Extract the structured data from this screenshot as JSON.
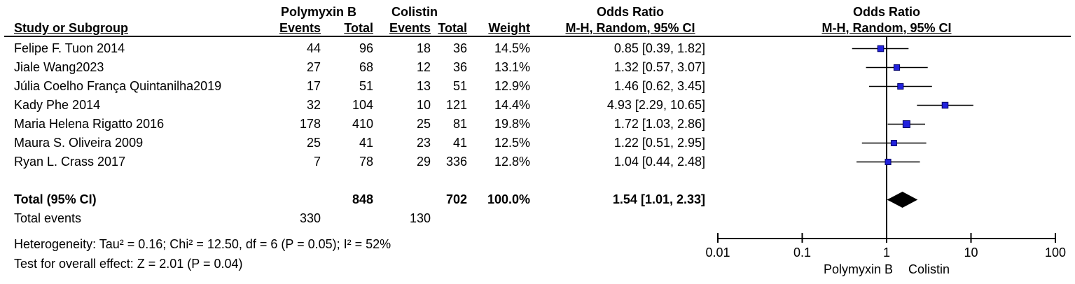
{
  "headers": {
    "group_polymyxin": "Polymyxin B",
    "group_colistin": "Colistin",
    "study": "Study or Subgroup",
    "events": "Events",
    "total": "Total",
    "weight": "Weight",
    "or_title": "Odds Ratio",
    "or_sub": "M-H, Random, 95% CI"
  },
  "table": {
    "rows": [
      {
        "study": "Felipe F. Tuon 2014",
        "pb_events": "44",
        "pb_total": "96",
        "c_events": "18",
        "c_total": "36",
        "weight": "14.5%",
        "or_ci": "0.85 [0.39, 1.82]"
      },
      {
        "study": "Jiale Wang2023",
        "pb_events": "27",
        "pb_total": "68",
        "c_events": "12",
        "c_total": "36",
        "weight": "13.1%",
        "or_ci": "1.32 [0.57, 3.07]"
      },
      {
        "study": "Júlia Coelho França Quintanilha2019",
        "pb_events": "17",
        "pb_total": "51",
        "c_events": "13",
        "c_total": "51",
        "weight": "12.9%",
        "or_ci": "1.46 [0.62, 3.45]"
      },
      {
        "study": "Kady Phe 2014",
        "pb_events": "32",
        "pb_total": "104",
        "c_events": "10",
        "c_total": "121",
        "weight": "14.4%",
        "or_ci": "4.93 [2.29, 10.65]"
      },
      {
        "study": "Maria Helena Rigatto 2016",
        "pb_events": "178",
        "pb_total": "410",
        "c_events": "25",
        "c_total": "81",
        "weight": "19.8%",
        "or_ci": "1.72 [1.03, 2.86]"
      },
      {
        "study": "Maura S. Oliveira 2009",
        "pb_events": "25",
        "pb_total": "41",
        "c_events": "23",
        "c_total": "41",
        "weight": "12.5%",
        "or_ci": "1.22 [0.51, 2.95]"
      },
      {
        "study": "Ryan L. Crass 2017",
        "pb_events": "7",
        "pb_total": "78",
        "c_events": "29",
        "c_total": "336",
        "weight": "12.8%",
        "or_ci": "1.04 [0.44, 2.48]"
      }
    ],
    "total_row": {
      "study": "Total (95% CI)",
      "pb_total": "848",
      "c_total": "702",
      "weight": "100.0%",
      "or_ci": "1.54 [1.01, 2.33]"
    },
    "total_events_row": {
      "study": "Total events",
      "pb_events": "330",
      "c_events": "130"
    }
  },
  "stats": {
    "heterogeneity": "Heterogeneity: Tau² = 0.16; Chi² = 12.50, df = 6 (P = 0.05); I² = 52%",
    "overall_effect": "Test for overall effect: Z = 2.01 (P = 0.04)"
  },
  "chart_data": {
    "type": "scatter",
    "subtype": "forest-plot",
    "title": "Odds Ratio",
    "subtitle": "M-H, Random, 95% CI",
    "x_scale": "log10",
    "xlim": [
      0.01,
      100
    ],
    "x_ticks": [
      "0.01",
      "0.1",
      "1",
      "10",
      "100"
    ],
    "ref_line_x": 1,
    "grid": false,
    "marker_color": "#2222dd",
    "marker_edge_color": "#000066",
    "line_color": "#000000",
    "points": [
      {
        "label": "Felipe F. Tuon 2014",
        "or": 0.85,
        "lo": 0.39,
        "hi": 1.82,
        "weight_pct": 14.5
      },
      {
        "label": "Jiale Wang2023",
        "or": 1.32,
        "lo": 0.57,
        "hi": 3.07,
        "weight_pct": 13.1
      },
      {
        "label": "Júlia Coelho França Quintanilha2019",
        "or": 1.46,
        "lo": 0.62,
        "hi": 3.45,
        "weight_pct": 12.9
      },
      {
        "label": "Kady Phe 2014",
        "or": 4.93,
        "lo": 2.29,
        "hi": 10.65,
        "weight_pct": 14.4
      },
      {
        "label": "Maria Helena Rigatto 2016",
        "or": 1.72,
        "lo": 1.03,
        "hi": 2.86,
        "weight_pct": 19.8
      },
      {
        "label": "Maura S. Oliveira 2009",
        "or": 1.22,
        "lo": 0.51,
        "hi": 2.95,
        "weight_pct": 12.5
      },
      {
        "label": "Ryan L. Crass 2017",
        "or": 1.04,
        "lo": 0.44,
        "hi": 2.48,
        "weight_pct": 12.8
      }
    ],
    "pooled": {
      "label": "Total (95% CI)",
      "or": 1.54,
      "lo": 1.01,
      "hi": 2.33
    },
    "axis_footer_left": "Polymyxin B",
    "axis_footer_right": "Colistin"
  }
}
